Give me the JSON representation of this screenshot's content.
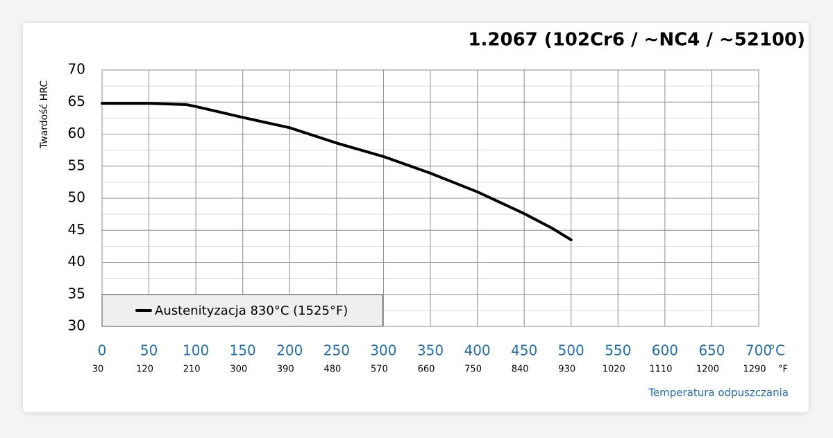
{
  "chart_data": {
    "type": "line",
    "title": "1.2067 (102Cr6 / ~NC4 / ~52100)",
    "y_label": "Twardość HRC",
    "x_label": "Temperatura odpuszczania",
    "x_unit": "°C",
    "x2_unit": "°F",
    "x": [
      0,
      50,
      70,
      90,
      100,
      150,
      200,
      250,
      300,
      350,
      400,
      450,
      480,
      500
    ],
    "series": [
      {
        "name": "Austenityzacja 830°C (1525°F)",
        "color": "#000000",
        "values": [
          64.8,
          64.8,
          64.7,
          64.6,
          64.3,
          62.6,
          61.0,
          58.6,
          56.5,
          53.9,
          51.0,
          47.6,
          45.3,
          43.5
        ]
      }
    ],
    "xlim": [
      0,
      700
    ],
    "ylim": [
      30,
      70
    ],
    "xticks": [
      0,
      50,
      100,
      150,
      200,
      250,
      300,
      350,
      400,
      450,
      500,
      550,
      600,
      650,
      700
    ],
    "x2ticks": [
      {
        "value": 0,
        "label": "30"
      },
      {
        "value": 50,
        "label": "120"
      },
      {
        "value": 100,
        "label": "210"
      },
      {
        "value": 150,
        "label": "300"
      },
      {
        "value": 200,
        "label": "390"
      },
      {
        "value": 250,
        "label": "480"
      },
      {
        "value": 300,
        "label": "570"
      },
      {
        "value": 350,
        "label": "660"
      },
      {
        "value": 400,
        "label": "750"
      },
      {
        "value": 450,
        "label": "840"
      },
      {
        "value": 500,
        "label": "930"
      },
      {
        "value": 550,
        "label": "1020"
      },
      {
        "value": 600,
        "label": "1110"
      },
      {
        "value": 650,
        "label": "1200"
      },
      {
        "value": 700,
        "label": "1290"
      }
    ],
    "yticks": [
      30,
      35,
      40,
      45,
      50,
      55,
      60,
      65,
      70
    ],
    "yminorticks": [
      32.5,
      37.5,
      42.5,
      47.5,
      52.5,
      57.5,
      62.5,
      67.5
    ],
    "grid": true
  }
}
